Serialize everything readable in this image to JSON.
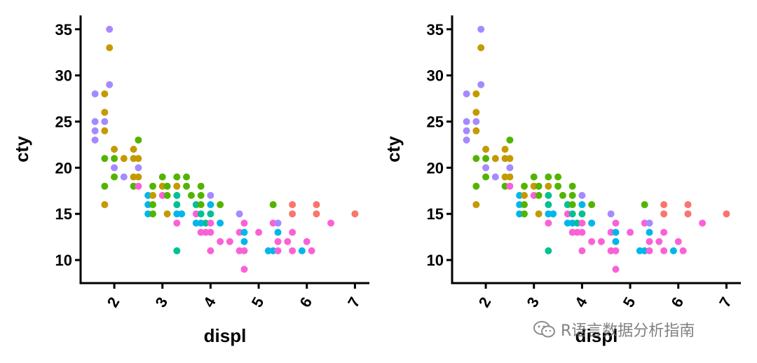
{
  "watermark": {
    "text": "R语言数据分析指南",
    "icon": "wechat-icon"
  },
  "chart_data": [
    {
      "type": "scatter",
      "xlabel": "displ",
      "ylabel": "cty",
      "xlim": [
        1.3,
        7.3
      ],
      "ylim": [
        7.5,
        36.5
      ],
      "xticks": [
        2,
        3,
        4,
        5,
        6,
        7
      ],
      "yticks": [
        10,
        15,
        20,
        25,
        30,
        35
      ],
      "grid": false,
      "colors": {
        "violet": "#A58AFF",
        "gold": "#C49A00",
        "green": "#53B400",
        "teal": "#00C094",
        "blue": "#00B6EB",
        "pink": "#FB61D7",
        "salmon": "#F8766D"
      },
      "points": [
        {
          "x": 1.6,
          "y": 28,
          "c": "violet"
        },
        {
          "x": 1.6,
          "y": 25,
          "c": "violet"
        },
        {
          "x": 1.6,
          "y": 24,
          "c": "violet"
        },
        {
          "x": 1.6,
          "y": 23,
          "c": "violet"
        },
        {
          "x": 1.8,
          "y": 28,
          "c": "gold"
        },
        {
          "x": 1.8,
          "y": 26,
          "c": "gold"
        },
        {
          "x": 1.8,
          "y": 25,
          "c": "violet"
        },
        {
          "x": 1.8,
          "y": 24,
          "c": "gold"
        },
        {
          "x": 1.8,
          "y": 21,
          "c": "green"
        },
        {
          "x": 1.8,
          "y": 18,
          "c": "green"
        },
        {
          "x": 1.8,
          "y": 16,
          "c": "gold"
        },
        {
          "x": 1.9,
          "y": 35,
          "c": "violet"
        },
        {
          "x": 1.9,
          "y": 33,
          "c": "gold"
        },
        {
          "x": 1.9,
          "y": 29,
          "c": "violet"
        },
        {
          "x": 2.0,
          "y": 22,
          "c": "gold"
        },
        {
          "x": 2.0,
          "y": 21,
          "c": "green"
        },
        {
          "x": 2.0,
          "y": 20,
          "c": "violet"
        },
        {
          "x": 2.0,
          "y": 19,
          "c": "green"
        },
        {
          "x": 2.2,
          "y": 21,
          "c": "gold"
        },
        {
          "x": 2.2,
          "y": 19,
          "c": "violet"
        },
        {
          "x": 2.4,
          "y": 22,
          "c": "gold"
        },
        {
          "x": 2.4,
          "y": 21,
          "c": "gold"
        },
        {
          "x": 2.4,
          "y": 19,
          "c": "gold"
        },
        {
          "x": 2.4,
          "y": 18,
          "c": "green"
        },
        {
          "x": 2.5,
          "y": 23,
          "c": "green"
        },
        {
          "x": 2.5,
          "y": 21,
          "c": "gold"
        },
        {
          "x": 2.5,
          "y": 20,
          "c": "violet"
        },
        {
          "x": 2.5,
          "y": 19,
          "c": "gold"
        },
        {
          "x": 2.5,
          "y": 18,
          "c": "pink"
        },
        {
          "x": 2.7,
          "y": 17,
          "c": "blue"
        },
        {
          "x": 2.7,
          "y": 16,
          "c": "blue"
        },
        {
          "x": 2.7,
          "y": 15,
          "c": "blue"
        },
        {
          "x": 2.8,
          "y": 18,
          "c": "green"
        },
        {
          "x": 2.8,
          "y": 17,
          "c": "gold"
        },
        {
          "x": 2.8,
          "y": 16,
          "c": "green"
        },
        {
          "x": 2.8,
          "y": 15,
          "c": "green"
        },
        {
          "x": 3.0,
          "y": 19,
          "c": "green"
        },
        {
          "x": 3.0,
          "y": 18,
          "c": "gold"
        },
        {
          "x": 3.0,
          "y": 17,
          "c": "pink"
        },
        {
          "x": 3.1,
          "y": 18,
          "c": "green"
        },
        {
          "x": 3.1,
          "y": 17,
          "c": "green"
        },
        {
          "x": 3.1,
          "y": 15,
          "c": "gold"
        },
        {
          "x": 3.3,
          "y": 19,
          "c": "green"
        },
        {
          "x": 3.3,
          "y": 18,
          "c": "gold"
        },
        {
          "x": 3.3,
          "y": 17,
          "c": "teal"
        },
        {
          "x": 3.3,
          "y": 16,
          "c": "teal"
        },
        {
          "x": 3.3,
          "y": 15,
          "c": "blue"
        },
        {
          "x": 3.3,
          "y": 14,
          "c": "pink"
        },
        {
          "x": 3.3,
          "y": 11,
          "c": "teal"
        },
        {
          "x": 3.4,
          "y": 15,
          "c": "blue"
        },
        {
          "x": 3.5,
          "y": 19,
          "c": "green"
        },
        {
          "x": 3.5,
          "y": 18,
          "c": "green"
        },
        {
          "x": 3.6,
          "y": 17,
          "c": "green"
        },
        {
          "x": 3.7,
          "y": 16,
          "c": "teal"
        },
        {
          "x": 3.7,
          "y": 15,
          "c": "pink"
        },
        {
          "x": 3.7,
          "y": 14,
          "c": "blue"
        },
        {
          "x": 3.8,
          "y": 18,
          "c": "green"
        },
        {
          "x": 3.8,
          "y": 17,
          "c": "green"
        },
        {
          "x": 3.8,
          "y": 16,
          "c": "green"
        },
        {
          "x": 3.8,
          "y": 15,
          "c": "teal"
        },
        {
          "x": 3.8,
          "y": 14,
          "c": "blue"
        },
        {
          "x": 3.8,
          "y": 13,
          "c": "pink"
        },
        {
          "x": 3.9,
          "y": 14,
          "c": "teal"
        },
        {
          "x": 3.9,
          "y": 13,
          "c": "pink"
        },
        {
          "x": 4.0,
          "y": 17,
          "c": "violet"
        },
        {
          "x": 4.0,
          "y": 16,
          "c": "blue"
        },
        {
          "x": 4.0,
          "y": 15,
          "c": "teal"
        },
        {
          "x": 4.0,
          "y": 14,
          "c": "pink"
        },
        {
          "x": 4.0,
          "y": 13,
          "c": "pink"
        },
        {
          "x": 4.0,
          "y": 11,
          "c": "pink"
        },
        {
          "x": 4.2,
          "y": 16,
          "c": "green"
        },
        {
          "x": 4.2,
          "y": 14,
          "c": "blue"
        },
        {
          "x": 4.2,
          "y": 12,
          "c": "pink"
        },
        {
          "x": 4.4,
          "y": 12,
          "c": "pink"
        },
        {
          "x": 4.6,
          "y": 15,
          "c": "violet"
        },
        {
          "x": 4.6,
          "y": 13,
          "c": "pink"
        },
        {
          "x": 4.6,
          "y": 11,
          "c": "pink"
        },
        {
          "x": 4.7,
          "y": 14,
          "c": "pink"
        },
        {
          "x": 4.7,
          "y": 13,
          "c": "blue"
        },
        {
          "x": 4.7,
          "y": 12,
          "c": "blue"
        },
        {
          "x": 4.7,
          "y": 11,
          "c": "pink"
        },
        {
          "x": 4.7,
          "y": 9,
          "c": "pink"
        },
        {
          "x": 5.0,
          "y": 13,
          "c": "pink"
        },
        {
          "x": 5.2,
          "y": 11,
          "c": "blue"
        },
        {
          "x": 5.3,
          "y": 16,
          "c": "green"
        },
        {
          "x": 5.3,
          "y": 14,
          "c": "pink"
        },
        {
          "x": 5.3,
          "y": 11,
          "c": "blue"
        },
        {
          "x": 5.4,
          "y": 14,
          "c": "violet"
        },
        {
          "x": 5.4,
          "y": 13,
          "c": "blue"
        },
        {
          "x": 5.4,
          "y": 12,
          "c": "pink"
        },
        {
          "x": 5.4,
          "y": 11,
          "c": "pink"
        },
        {
          "x": 5.6,
          "y": 12,
          "c": "pink"
        },
        {
          "x": 5.7,
          "y": 16,
          "c": "salmon"
        },
        {
          "x": 5.7,
          "y": 15,
          "c": "salmon"
        },
        {
          "x": 5.7,
          "y": 13,
          "c": "pink"
        },
        {
          "x": 5.7,
          "y": 11,
          "c": "pink"
        },
        {
          "x": 5.9,
          "y": 11,
          "c": "blue"
        },
        {
          "x": 6.0,
          "y": 12,
          "c": "pink"
        },
        {
          "x": 6.1,
          "y": 11,
          "c": "pink"
        },
        {
          "x": 6.2,
          "y": 16,
          "c": "salmon"
        },
        {
          "x": 6.2,
          "y": 15,
          "c": "salmon"
        },
        {
          "x": 6.5,
          "y": 14,
          "c": "pink"
        },
        {
          "x": 7.0,
          "y": 15,
          "c": "salmon"
        }
      ]
    },
    {
      "type": "scatter",
      "xlabel": "displ",
      "ylabel": "cty",
      "xlim": [
        1.3,
        7.3
      ],
      "ylim": [
        7.5,
        36.5
      ],
      "xticks": [
        2,
        3,
        4,
        5,
        6,
        7
      ],
      "yticks": [
        10,
        15,
        20,
        25,
        30,
        35
      ],
      "grid": false,
      "same_points_as": 0
    }
  ]
}
